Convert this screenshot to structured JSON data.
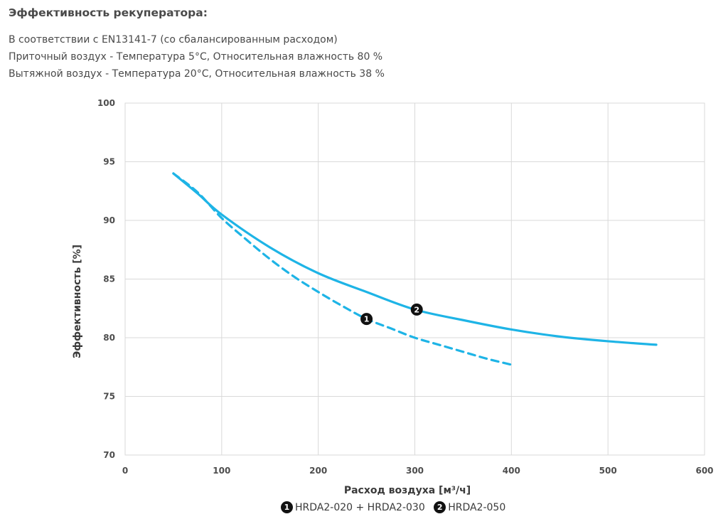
{
  "header": {
    "title": "Эффективность рекуператора:",
    "lines": [
      "В соответствии с EN13141-7 (со сбалансированным расходом)",
      "Приточный воздух - Температура 5°C, Относительная влажность 80 %",
      "Вытяжной воздух  - Температура 20°C, Относительная влажность 38 %"
    ]
  },
  "chart_data": {
    "type": "line",
    "xlabel": "Расход воздуха [м³/ч]",
    "ylabel": "Эффективность [%]",
    "xlim": [
      0,
      600
    ],
    "ylim": [
      70,
      100
    ],
    "xticks": [
      0,
      100,
      200,
      300,
      400,
      500,
      600
    ],
    "yticks": [
      70,
      75,
      80,
      85,
      90,
      95,
      100
    ],
    "grid": true,
    "legend_position": "bottom",
    "series": [
      {
        "name": "HRDA2-020 + HRDA2-030",
        "marker_label": "1",
        "style": "dashed",
        "color": "#1EB4E6",
        "x": [
          50,
          75,
          100,
          125,
          150,
          175,
          200,
          225,
          250,
          275,
          300,
          325,
          350,
          375,
          400
        ],
        "y": [
          94.0,
          92.4,
          90.2,
          88.4,
          86.7,
          85.2,
          83.9,
          82.7,
          81.6,
          80.8,
          80.0,
          79.4,
          78.8,
          78.2,
          77.7
        ],
        "marker_at": [
          250,
          81.6
        ]
      },
      {
        "name": "HRDA2-050",
        "marker_label": "2",
        "style": "solid",
        "color": "#1EB4E6",
        "x": [
          50,
          75,
          100,
          150,
          200,
          250,
          300,
          350,
          400,
          450,
          500,
          550
        ],
        "y": [
          94.0,
          92.3,
          90.5,
          87.7,
          85.5,
          83.9,
          82.4,
          81.5,
          80.7,
          80.1,
          79.7,
          79.4
        ],
        "marker_at": [
          302,
          82.4
        ]
      }
    ]
  },
  "legend": {
    "items": [
      {
        "marker": "1",
        "label": "HRDA2-020 + HRDA2-030"
      },
      {
        "marker": "2",
        "label": "HRDA2-050"
      }
    ]
  }
}
